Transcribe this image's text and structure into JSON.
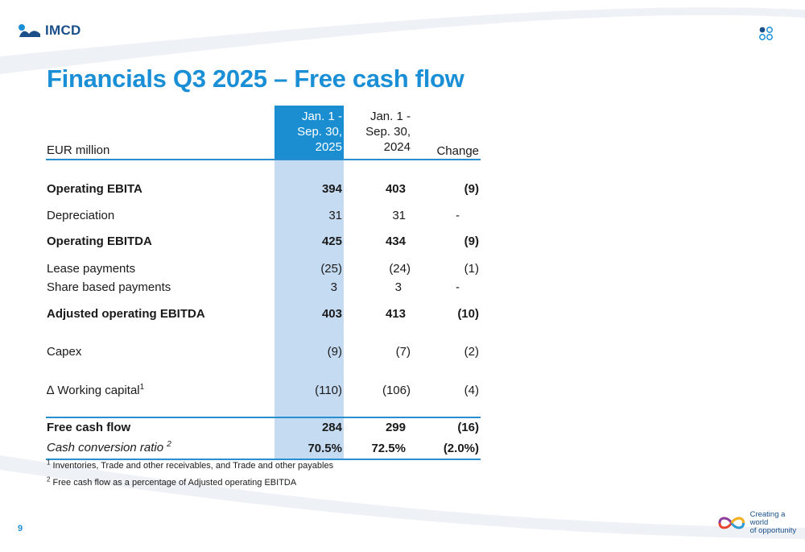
{
  "brand": {
    "logo_text": "IMCD",
    "tagline_line1": "Creating a world",
    "tagline_line2": "of opportunity"
  },
  "slide": {
    "title": "Financials Q3 2025 – Free cash flow",
    "page_number": "9"
  },
  "table": {
    "unit_label": "EUR million",
    "columns": [
      {
        "line1": "Jan. 1 -",
        "line2": "Sep. 30,",
        "line3": "2025",
        "highlighted": true
      },
      {
        "line1": "Jan. 1 -",
        "line2": "Sep. 30,",
        "line3": "2024",
        "highlighted": false
      },
      {
        "line1": "Change"
      }
    ],
    "rows": {
      "operating_ebita": {
        "label": "Operating EBITA",
        "v2025": "394",
        "v2024": "403",
        "change": "(9)"
      },
      "depreciation": {
        "label": "Depreciation",
        "v2025": "31",
        "v2024": "31",
        "change": "-"
      },
      "operating_ebitda": {
        "label": "Operating EBITDA",
        "v2025": "425",
        "v2024": "434",
        "change": "(9)"
      },
      "lease_payments": {
        "label": "Lease payments",
        "v2025": "(25)",
        "v2024": "(24)",
        "change": "(1)"
      },
      "share_based_payments": {
        "label": "Share based payments",
        "v2025": "3",
        "v2024": "3",
        "change": "-"
      },
      "adjusted_operating_ebitda": {
        "label": "Adjusted operating EBITDA",
        "v2025": "403",
        "v2024": "413",
        "change": "(10)"
      },
      "capex": {
        "label": "Capex",
        "v2025": "(9)",
        "v2024": "(7)",
        "change": "(2)"
      },
      "working_capital": {
        "label": "∆ Working capital",
        "sup": "1",
        "v2025": "(110)",
        "v2024": "(106)",
        "change": "(4)"
      },
      "free_cash_flow": {
        "label": "Free cash flow",
        "v2025": "284",
        "v2024": "299",
        "change": "(16)"
      },
      "cash_conversion_ratio": {
        "label": "Cash conversion ratio",
        "sup": "2",
        "v2025": "70.5%",
        "v2024": "72.5%",
        "change": "(2.0%)"
      }
    }
  },
  "footnotes": [
    {
      "mark": "1",
      "text": "Inventories, Trade and other receivables, and Trade and other payables"
    },
    {
      "mark": "2",
      "text": "Free cash flow as a percentage of Adjusted operating EBITDA"
    }
  ],
  "colors": {
    "accent_blue": "#1a8fd6",
    "column_highlight": "#c5dbf2",
    "header_highlight": "#1b8ed1",
    "logo_navy": "#1a4f8a"
  }
}
